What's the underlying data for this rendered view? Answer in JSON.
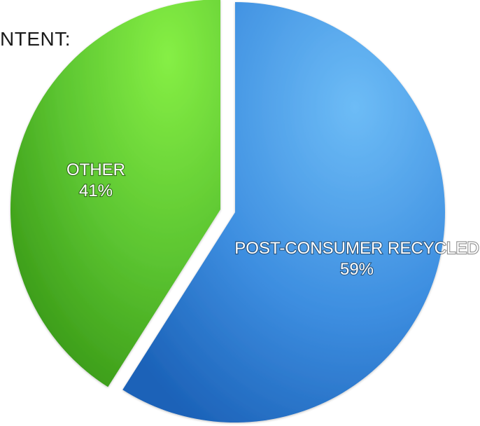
{
  "chart_data": {
    "type": "pie",
    "title": "NTENT:",
    "slices": [
      {
        "name": "POST-CONSUMER RECYCLED",
        "value": 59,
        "label": "59%",
        "color": "#3d8ee0"
      },
      {
        "name": "OTHER",
        "value": 41,
        "label": "41%",
        "color": "#5cc531"
      }
    ],
    "legend": "none"
  },
  "colors": {
    "blue_light": "#5fb1f2",
    "blue_dark": "#1f6cc4",
    "green_light": "#7de83e",
    "green_dark": "#3e9e1b"
  }
}
